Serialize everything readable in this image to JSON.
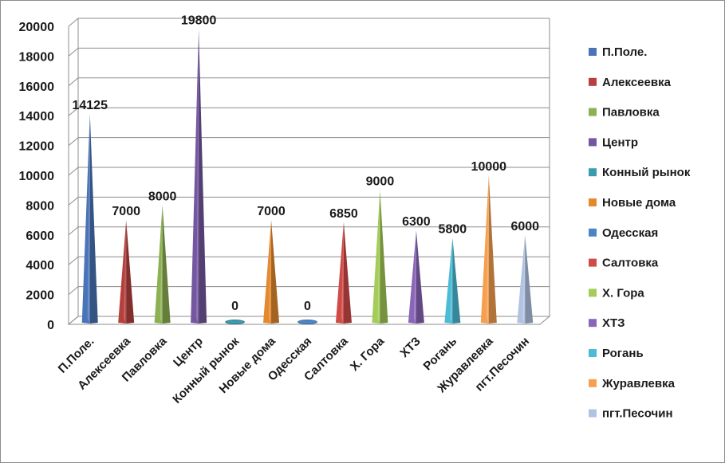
{
  "chart_data": {
    "type": "bar",
    "style": "3d-cone",
    "title": "",
    "xlabel": "",
    "ylabel": "",
    "ylim": [
      0,
      20000
    ],
    "yticks": [
      0,
      2000,
      4000,
      6000,
      8000,
      10000,
      12000,
      14000,
      16000,
      18000,
      20000
    ],
    "grid": true,
    "legend_position": "right",
    "categories": [
      "П.Поле.",
      "Алексеевка",
      "Павловка",
      "Центр",
      "Конный рынок",
      "Новые дома",
      "Одесская",
      "Салтовка",
      "Х. Гора",
      "ХТЗ",
      "Рогань",
      "Журавлевка",
      "пгт.Песочин"
    ],
    "values": [
      14125,
      7000,
      8000,
      19800,
      0,
      7000,
      0,
      6850,
      9000,
      6300,
      5800,
      10000,
      6000
    ],
    "data_labels": [
      "14125",
      "7000",
      "8000",
      "19800",
      "0",
      "7000",
      "0",
      "6850",
      "9000",
      "6300",
      "5800",
      "10000",
      "6000"
    ],
    "colors": [
      "#4a74b8",
      "#b5403d",
      "#8cb052",
      "#7457a0",
      "#3b9bb0",
      "#e5892f",
      "#4a86c6",
      "#cf4b48",
      "#a3cc58",
      "#8a66b8",
      "#4cbcd6",
      "#f6a04f",
      "#b1c3e3"
    ],
    "legend": [
      "П.Поле.",
      "Алексеевка",
      "Павловка",
      "Центр",
      "Конный рынок",
      "Новые дома",
      "Одесская",
      "Салтовка",
      "Х. Гора",
      "ХТЗ",
      "Рогань",
      "Журавлевка",
      "пгт.Песочин"
    ]
  }
}
